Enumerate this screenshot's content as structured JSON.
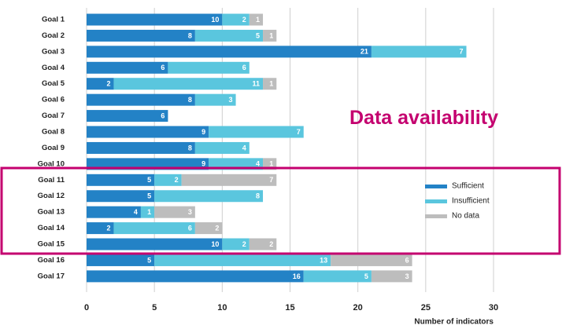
{
  "chart_data": {
    "type": "stacked-barh",
    "categories": [
      "Goal 1",
      "Goal 2",
      "Goal 3",
      "Goal 4",
      "Goal 5",
      "Goal 6",
      "Goal 7",
      "Goal 8",
      "Goal 9",
      "Goal 10",
      "Goal 11",
      "Goal 12",
      "Goal 13",
      "Goal 14",
      "Goal 15",
      "Goal 16",
      "Goal 17"
    ],
    "series": [
      {
        "name": "Sufficient",
        "color": "#2382c6",
        "values": [
          10,
          8,
          21,
          6,
          2,
          8,
          6,
          9,
          8,
          9,
          5,
          5,
          4,
          2,
          10,
          5,
          16
        ]
      },
      {
        "name": "Insufficient",
        "color": "#5ac6de",
        "values": [
          2,
          5,
          7,
          6,
          11,
          3,
          0,
          7,
          4,
          4,
          2,
          8,
          1,
          6,
          2,
          13,
          5
        ]
      },
      {
        "name": "No data",
        "color": "#bdbdbd",
        "values": [
          1,
          1,
          0,
          0,
          1,
          0,
          0,
          0,
          0,
          1,
          7,
          0,
          3,
          2,
          2,
          6,
          3
        ]
      }
    ],
    "xlim": [
      0,
      30
    ],
    "xticks": [
      0,
      5,
      10,
      15,
      20,
      25,
      30
    ],
    "xlabel": "Number of indicators",
    "annotation": "Data availability",
    "grid": true,
    "legend": "right"
  }
}
